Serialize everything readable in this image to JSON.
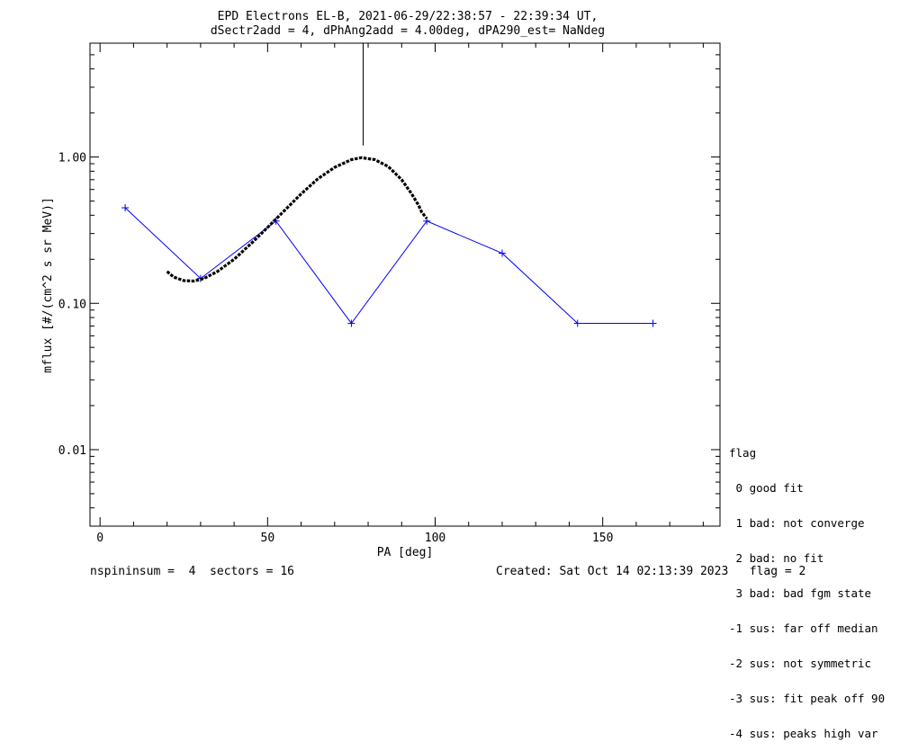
{
  "chart_data": {
    "type": "line",
    "title_line1": "EPD Electrons EL-B, 2021-06-29/22:38:57 - 22:39:34 UT,",
    "title_line2": "dSectr2add = 4, dPhAng2add = 4.00deg, dPA290_est=   NaNdeg",
    "xlabel": "PA [deg]",
    "ylabel": "mflux [#/(cm^2 s sr MeV)]",
    "xlim": [
      -3,
      185
    ],
    "ylim": [
      0.003,
      6.0
    ],
    "y_log": true,
    "x_ticks": [
      0,
      50,
      100,
      150
    ],
    "y_ticks": [
      0.01,
      0.1,
      1.0
    ],
    "y_tick_labels": [
      "0.01",
      "0.10",
      "1.00"
    ],
    "series": [
      {
        "style": "blue-line-plus",
        "color": "#0000ff",
        "x": [
          7.5,
          30,
          52.5,
          75,
          97.5,
          120,
          142.5,
          165
        ],
        "y": [
          0.45,
          0.148,
          0.365,
          0.073,
          0.365,
          0.22,
          0.073,
          0.073
        ]
      },
      {
        "style": "black-dashed-fit",
        "color": "#000000",
        "x": [
          20,
          22,
          25,
          28,
          31,
          35,
          40,
          45,
          50,
          55,
          60,
          65,
          70,
          75,
          78,
          82,
          86,
          90,
          93,
          95,
          96,
          97.5
        ],
        "y": [
          0.165,
          0.151,
          0.143,
          0.142,
          0.148,
          0.165,
          0.2,
          0.255,
          0.33,
          0.43,
          0.56,
          0.71,
          0.85,
          0.96,
          0.99,
          0.96,
          0.86,
          0.7,
          0.56,
          0.47,
          0.42,
          0.38
        ]
      },
      {
        "style": "vertical-marker",
        "color": "#000000",
        "x": [
          78.5,
          78.5
        ],
        "y": [
          1.2,
          6.0
        ]
      }
    ]
  },
  "footer": {
    "left": "nspininsum =  4  sectors = 16",
    "right": "Created: Sat Oct 14 02:13:39 2023   flag = 2"
  },
  "legend": {
    "title": "flag",
    "items": [
      " 0 good fit",
      " 1 bad: not converge",
      " 2 bad: no fit",
      " 3 bad: bad fgm state",
      "-1 sus: far off median",
      "-2 sus: not symmetric",
      "-3 sus: fit peak off 90",
      "-4 sus: peaks high var"
    ]
  }
}
